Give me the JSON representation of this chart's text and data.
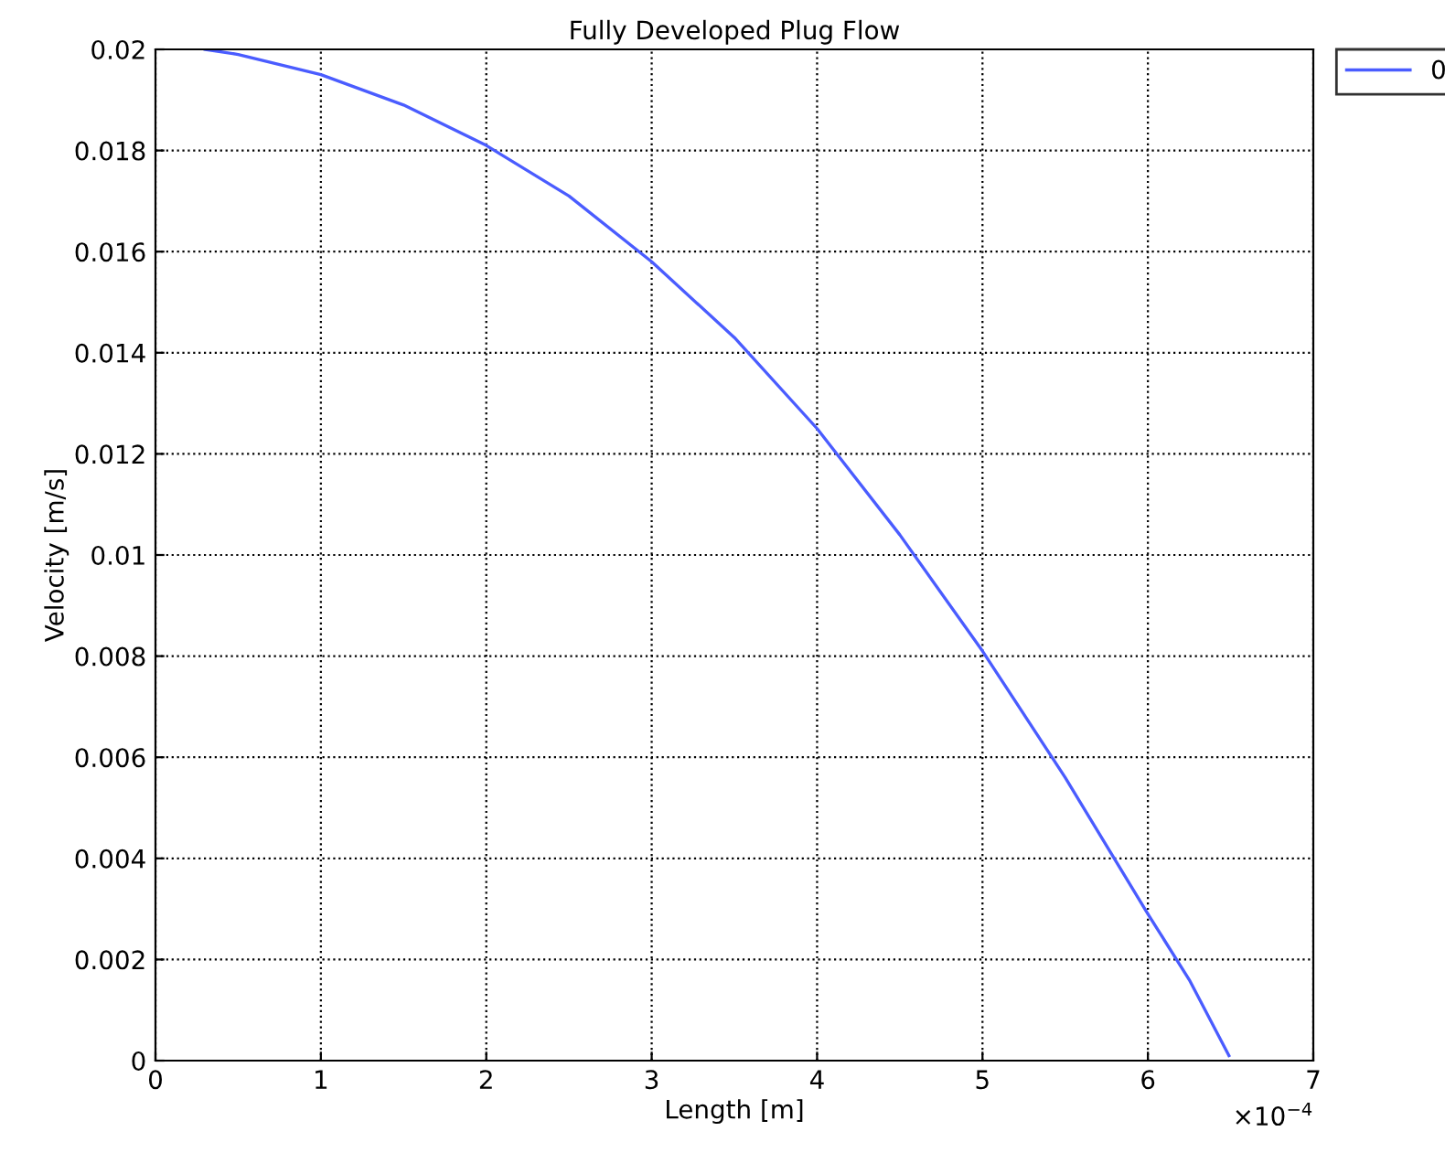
{
  "chart_data": {
    "type": "line",
    "title": "Fully Developed Plug Flow",
    "xlabel": "Length [m]",
    "ylabel": "Velocity [m/s]",
    "annotations": [
      "×10$^{−4}$"
    ],
    "x": [
      0.3,
      0.5,
      1,
      1.5,
      2,
      2.5,
      3,
      3.5,
      4,
      4.5,
      5,
      5.5,
      6,
      6.25,
      6.49
    ],
    "series": [
      {
        "name": "0",
        "color": "#4a5cff",
        "values": [
          0.02,
          0.0199,
          0.0195,
          0.0189,
          0.0181,
          0.0171,
          0.0158,
          0.0143,
          0.0125,
          0.0104,
          0.0081,
          0.0056,
          0.0029,
          0.0016,
          0.0001
        ]
      }
    ],
    "xlim": [
      0,
      7
    ],
    "ylim": [
      0,
      0.02
    ],
    "xticks": [
      0,
      1,
      2,
      3,
      4,
      5,
      6,
      7
    ],
    "yticks": [
      0,
      0.002,
      0.004,
      0.006,
      0.008,
      0.01,
      0.012,
      0.014,
      0.016,
      0.018,
      0.02
    ],
    "grid": true,
    "legend": "top right",
    "line_style": "solid",
    "marker": "none"
  }
}
